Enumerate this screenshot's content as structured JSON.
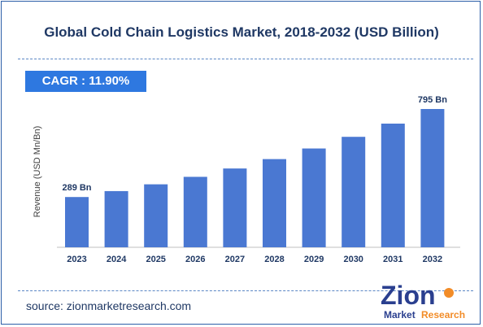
{
  "header": {
    "title": "Global Cold Chain Logistics Market, 2018-2032 (USD Billion)"
  },
  "cagr_label": "CAGR :  11.90%",
  "footer": {
    "source": "source: zionmarketresearch.com"
  },
  "logo": {
    "word": "Zion",
    "sub_left": "Market",
    "sub_right": "Research"
  },
  "chart_data": {
    "type": "bar",
    "categories": [
      "2023",
      "2024",
      "2025",
      "2026",
      "2027",
      "2028",
      "2029",
      "2030",
      "2031",
      "2032"
    ],
    "values": [
      289,
      323,
      362,
      405,
      453,
      507,
      568,
      635,
      711,
      795
    ],
    "data_labels": [
      {
        "index": 0,
        "text": "289 Bn"
      },
      {
        "index": 9,
        "text": "795 Bn"
      }
    ],
    "ylabel": "Revenue (USD Mn/Bn)",
    "xlabel": "",
    "ylim": [
      0,
      875
    ],
    "grid": false,
    "bar_color": "#4a78d2"
  }
}
